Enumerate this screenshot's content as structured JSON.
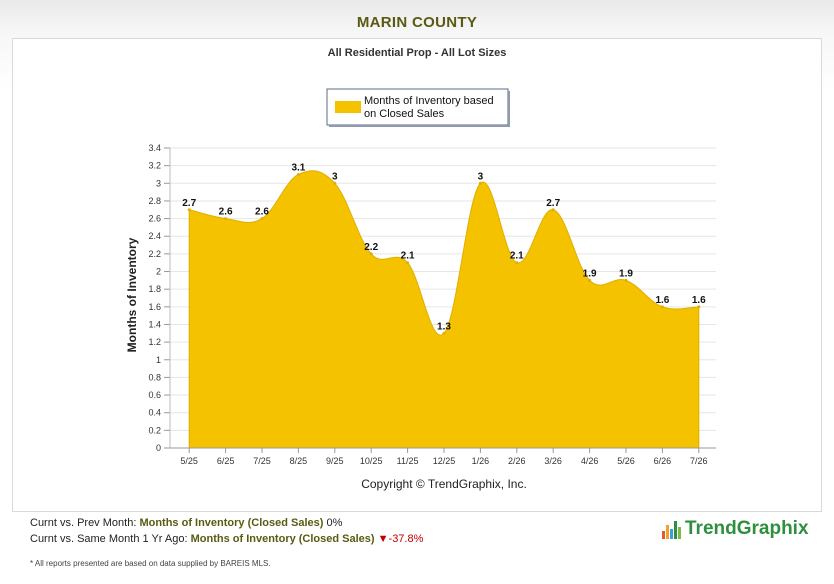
{
  "page": {
    "title": "MARIN COUNTY",
    "subtitle": "All Residential Prop - All Lot Sizes",
    "copyright": "Copyright © TrendGraphix, Inc."
  },
  "footer": {
    "line1_prefix": "Curnt vs. Prev Month:",
    "line1_metric": "Months of Inventory (Closed Sales)",
    "line1_value": "0%",
    "line2_prefix": "Curnt vs. Same Month 1 Yr Ago:",
    "line2_metric": "Months of Inventory (Closed Sales)",
    "line2_arrow": "▼",
    "line2_value": "-37.8%",
    "disclaimer": "* All reports presented are based on data supplied by BAREIS MLS.",
    "logo_text": "TrendGraphix"
  },
  "colors": {
    "area_fill": "#f5c200",
    "area_stroke": "#e0ae00",
    "brand_green": "#2f8f3f",
    "title": "#5a5a12",
    "down": "#c00000",
    "grid": "#e6e6e6"
  },
  "chart_data": {
    "type": "area",
    "title": "",
    "ylabel": "Months of Inventory",
    "xlabel": "",
    "ylim": [
      0,
      3.4
    ],
    "yticks": [
      "0",
      "0.2",
      "0.4",
      "0.6",
      "0.8",
      "1",
      "1.2",
      "1.4",
      "1.6",
      "1.8",
      "2",
      "2.2",
      "2.4",
      "2.6",
      "2.8",
      "3",
      "3.2",
      "3.4"
    ],
    "grid": true,
    "legend_position": "top-center",
    "categories": [
      "5/25",
      "6/25",
      "7/25",
      "8/25",
      "9/25",
      "10/25",
      "11/25",
      "12/25",
      "1/26",
      "2/26",
      "3/26",
      "4/26",
      "5/26",
      "6/26",
      "7/26"
    ],
    "series": [
      {
        "name": "Months of Inventory based on Closed Sales",
        "values": [
          2.7,
          2.6,
          2.6,
          3.1,
          3,
          2.2,
          2.1,
          1.3,
          3,
          2.1,
          2.7,
          1.9,
          1.9,
          1.6,
          1.6
        ],
        "labels": [
          "2.7",
          "2.6",
          "2.6",
          "3.1",
          "3",
          "2.2",
          "2.1",
          "1.3",
          "3",
          "2.1",
          "2.7",
          "1.9",
          "1.9",
          "1.6",
          "1.6"
        ]
      }
    ]
  }
}
